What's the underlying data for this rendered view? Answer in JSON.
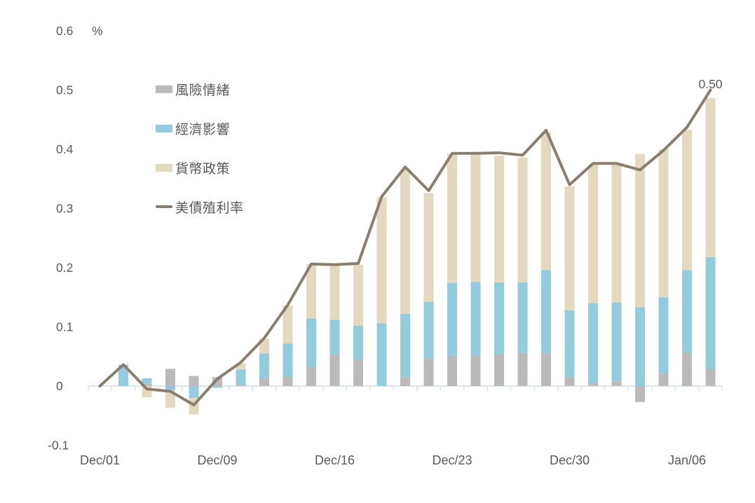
{
  "chart_data": {
    "type": "bar",
    "subtype": "stacked-bars-with-line-overlay",
    "title": "",
    "unit_label": "%",
    "end_label": "0.50",
    "ylim": [
      -0.1,
      0.6
    ],
    "y_ticks": [
      0.6,
      0.5,
      0.4,
      0.3,
      0.2,
      0.1,
      0,
      -0.1
    ],
    "y_tick_labels": [
      "0.6",
      "0.5",
      "0.4",
      "0.3",
      "0.2",
      "0.1",
      "0",
      "-0.1"
    ],
    "x_count": 27,
    "x_tick_positions": [
      0,
      5,
      10,
      15,
      20,
      25
    ],
    "x_tick_labels": [
      "Dec/01",
      "Dec/09",
      "Dec/16",
      "Dec/23",
      "Dec/30",
      "Jan/06"
    ],
    "grid": "zero-axis-only",
    "legend_position": "upper-left-inside",
    "colors": {
      "risk": "#b5b5b5",
      "economy": "#94cbdd",
      "policy": "#e3d9c0",
      "yield_line": "#8a7f6e",
      "axis": "#d9e6ea",
      "text": "#595959"
    },
    "series": [
      {
        "key": "risk",
        "name": "風險情緒",
        "type": "bar",
        "color": "#b5b5b5",
        "values": [
          0,
          0,
          0.004,
          0.029,
          0.017,
          0.015,
          0.002,
          0.013,
          0.016,
          0.032,
          0.054,
          0.045,
          0,
          0.015,
          0.046,
          0.051,
          0.052,
          0.054,
          0.056,
          0.055,
          0.015,
          0.006,
          0.008,
          -0.027,
          0.022,
          0.057,
          0.029
        ]
      },
      {
        "key": "economy",
        "name": "經濟影響",
        "type": "bar",
        "color": "#94cbdd",
        "values": [
          0,
          0.036,
          0.009,
          -0.007,
          -0.02,
          -0.003,
          0.026,
          0.042,
          0.056,
          0.082,
          0.058,
          0.057,
          0.106,
          0.107,
          0.096,
          0.123,
          0.124,
          0.121,
          0.119,
          0.141,
          0.113,
          0.134,
          0.133,
          0.133,
          0.128,
          0.139,
          0.189
        ]
      },
      {
        "key": "policy",
        "name": "貨幣政策",
        "type": "bar",
        "color": "#e3d9c0",
        "values": [
          0,
          0,
          -0.019,
          -0.03,
          -0.028,
          0,
          0.01,
          0.025,
          0.064,
          0.092,
          0.091,
          0.103,
          0.213,
          0.244,
          0.184,
          0.218,
          0.215,
          0.214,
          0.211,
          0.232,
          0.209,
          0.234,
          0.233,
          0.259,
          0.25,
          0.236,
          0.268
        ]
      },
      {
        "key": "yield",
        "name": "美債殖利率",
        "type": "line",
        "color": "#8a7f6e",
        "values": [
          0,
          0.036,
          -0.005,
          -0.009,
          -0.032,
          0.012,
          0.04,
          0.081,
          0.137,
          0.206,
          0.205,
          0.207,
          0.32,
          0.37,
          0.33,
          0.393,
          0.393,
          0.394,
          0.39,
          0.432,
          0.34,
          0.376,
          0.376,
          0.365,
          0.398,
          0.437,
          0.5
        ]
      }
    ]
  }
}
